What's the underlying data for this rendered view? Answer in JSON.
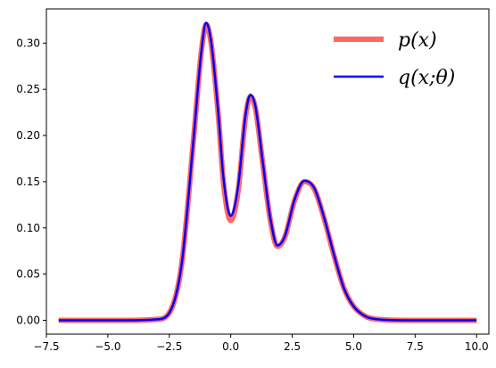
{
  "chart_data": {
    "type": "line",
    "title": "",
    "xlabel": "",
    "ylabel": "",
    "xlim": [
      -7.5,
      10.5
    ],
    "ylim": [
      -0.015,
      0.337
    ],
    "xticks": [
      -7.5,
      -5.0,
      -2.5,
      0.0,
      2.5,
      5.0,
      7.5,
      10.0
    ],
    "xtick_labels": [
      "−7.5",
      "−5.0",
      "−2.5",
      "0.0",
      "2.5",
      "5.0",
      "7.5",
      "10.0"
    ],
    "yticks": [
      0.0,
      0.05,
      0.1,
      0.15,
      0.2,
      0.25,
      0.3
    ],
    "ytick_labels": [
      "0.00",
      "0.05",
      "0.10",
      "0.15",
      "0.20",
      "0.25",
      "0.30"
    ],
    "grid": false,
    "legend_position": "top-right",
    "x": [
      -7.0,
      -4.0,
      -3.0,
      -2.5,
      -2.0,
      -1.5,
      -1.2,
      -1.0,
      -0.8,
      -0.5,
      -0.3,
      0.0,
      0.3,
      0.6,
      0.8,
      1.0,
      1.3,
      1.6,
      1.9,
      2.2,
      2.6,
      3.0,
      3.4,
      3.8,
      4.2,
      4.6,
      5.0,
      5.5,
      6.0,
      7.0,
      10.0
    ],
    "series": [
      {
        "name": "p(x)",
        "color": "#ff6666",
        "values": [
          0.0,
          0.0,
          0.001,
          0.008,
          0.06,
          0.2,
          0.29,
          0.32,
          0.3,
          0.22,
          0.15,
          0.108,
          0.14,
          0.22,
          0.242,
          0.23,
          0.17,
          0.11,
          0.08,
          0.09,
          0.13,
          0.15,
          0.142,
          0.11,
          0.07,
          0.035,
          0.015,
          0.004,
          0.001,
          0.0,
          0.0
        ]
      },
      {
        "name": "q(x;θ)",
        "color": "#0000ff",
        "values": [
          0.0,
          0.0,
          0.001,
          0.008,
          0.06,
          0.2,
          0.29,
          0.322,
          0.302,
          0.222,
          0.155,
          0.113,
          0.145,
          0.222,
          0.244,
          0.232,
          0.172,
          0.112,
          0.081,
          0.091,
          0.131,
          0.151,
          0.143,
          0.111,
          0.071,
          0.035,
          0.015,
          0.004,
          0.001,
          0.0,
          0.0
        ]
      }
    ]
  }
}
